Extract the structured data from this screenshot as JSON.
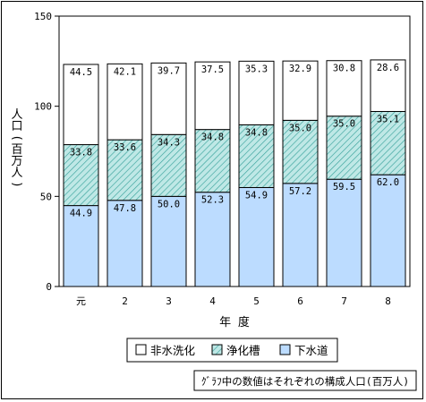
{
  "chart_data": {
    "type": "bar",
    "stacked": true,
    "categories": [
      "元",
      "2",
      "3",
      "4",
      "5",
      "6",
      "7",
      "8"
    ],
    "series": [
      {
        "name": "下水道",
        "values": [
          44.9,
          47.8,
          50.0,
          52.3,
          54.9,
          57.2,
          59.5,
          62.0
        ],
        "fill": "#bcdcff"
      },
      {
        "name": "浄化槽",
        "values": [
          33.8,
          33.6,
          34.3,
          34.8,
          34.8,
          35.0,
          35.0,
          35.1
        ],
        "fill": "#bfe8e6",
        "pattern": "diagonal-hatch"
      },
      {
        "name": "非水洗化",
        "values": [
          44.5,
          42.1,
          39.7,
          37.5,
          35.3,
          32.9,
          30.8,
          28.6
        ],
        "fill": "#ffffff"
      }
    ],
    "value_labels": [
      [
        "44.9",
        "47.8",
        "50.0",
        "52.3",
        "54.9",
        "57.2",
        "59.5",
        "62.0"
      ],
      [
        "33.8",
        "33.6",
        "34.3",
        "34.8",
        "34.8",
        "35.0",
        "35.0",
        "35.1"
      ],
      [
        "44.5",
        "42.1",
        "39.7",
        "37.5",
        "35.3",
        "32.9",
        "30.8",
        "28.6"
      ]
    ],
    "yticks": [
      "0",
      "50",
      "100",
      "150"
    ],
    "ylim": [
      0,
      150
    ],
    "ylabel": "人口(百万人)",
    "xlabel": "年 度",
    "legend": {
      "position": "bottom",
      "items": [
        "非水洗化",
        "浄化槽",
        "下水道"
      ]
    },
    "note": "ｸﾞﾗﾌ中の数値はそれぞれの構成人口(百万人)",
    "grid": false
  }
}
